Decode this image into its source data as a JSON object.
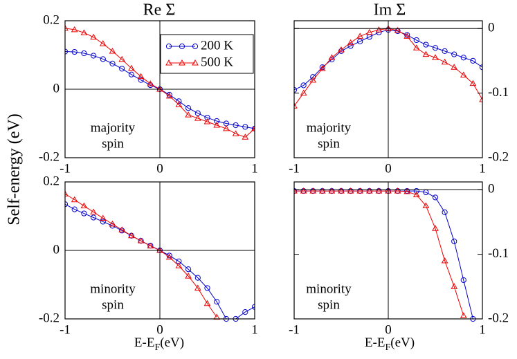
{
  "chart_data": [
    {
      "type": "line",
      "title": "Re Σ",
      "ylabel": "Self-energy (eV)",
      "xlim": [
        -1,
        1
      ],
      "ylim": [
        -0.2,
        0.2
      ],
      "xticks": [
        -1,
        0,
        1
      ],
      "yticks": [
        -0.2,
        0,
        0.2
      ],
      "yaxis_side": "left",
      "zero_lines": true,
      "legend": "upper right",
      "annotation": [
        "majority",
        "spin"
      ],
      "x": [
        -1,
        -0.9,
        -0.8,
        -0.7,
        -0.6,
        -0.5,
        -0.4,
        -0.3,
        -0.2,
        -0.1,
        0,
        0.1,
        0.2,
        0.3,
        0.4,
        0.5,
        0.6,
        0.7,
        0.8,
        0.9,
        1
      ],
      "series": [
        {
          "name": "200 K",
          "color": "#0000cc",
          "marker": "circle",
          "values": [
            0.11,
            0.109,
            0.105,
            0.098,
            0.088,
            0.075,
            0.06,
            0.043,
            0.027,
            0.012,
            0,
            -0.016,
            -0.035,
            -0.055,
            -0.07,
            -0.083,
            -0.093,
            -0.1,
            -0.105,
            -0.11,
            -0.115
          ]
        },
        {
          "name": "500 K",
          "color": "#ee0000",
          "marker": "triangle",
          "values": [
            0.178,
            0.174,
            0.165,
            0.152,
            0.133,
            0.111,
            0.087,
            0.061,
            0.037,
            0.016,
            0,
            -0.02,
            -0.045,
            -0.075,
            -0.085,
            -0.095,
            -0.105,
            -0.115,
            -0.13,
            -0.14,
            -0.115
          ]
        }
      ]
    },
    {
      "type": "line",
      "title": "Im Σ",
      "xlim": [
        -1,
        1
      ],
      "ylim": [
        -0.2,
        0.012
      ],
      "xticks": [
        -1,
        0,
        1
      ],
      "yticks": [
        -0.2,
        -0.1,
        0
      ],
      "yaxis_side": "right",
      "zero_lines": true,
      "annotation": [
        "majority",
        "spin"
      ],
      "x": [
        -1,
        -0.9,
        -0.8,
        -0.7,
        -0.6,
        -0.5,
        -0.4,
        -0.3,
        -0.2,
        -0.1,
        0,
        0.1,
        0.2,
        0.3,
        0.4,
        0.5,
        0.6,
        0.7,
        0.8,
        0.9,
        1
      ],
      "series": [
        {
          "color": "#0000cc",
          "marker": "circle",
          "values": [
            -0.095,
            -0.088,
            -0.075,
            -0.06,
            -0.048,
            -0.035,
            -0.027,
            -0.02,
            -0.013,
            -0.006,
            -0.002,
            -0.004,
            -0.01,
            -0.018,
            -0.025,
            -0.03,
            -0.035,
            -0.04,
            -0.045,
            -0.05,
            -0.06
          ]
        },
        {
          "color": "#ee0000",
          "marker": "triangle",
          "values": [
            -0.12,
            -0.1,
            -0.08,
            -0.062,
            -0.045,
            -0.033,
            -0.022,
            -0.012,
            -0.006,
            -0.002,
            0,
            -0.003,
            -0.012,
            -0.03,
            -0.04,
            -0.045,
            -0.052,
            -0.06,
            -0.072,
            -0.085,
            -0.11
          ]
        }
      ]
    },
    {
      "type": "line",
      "xlabel": "E-E",
      "xlabel_sub": "F",
      "xlabel_unit": "(eV)",
      "xlim": [
        -1,
        1
      ],
      "ylim": [
        -0.2,
        0.2
      ],
      "xticks": [
        -1,
        0,
        1
      ],
      "yticks": [
        -0.2,
        0,
        0.2
      ],
      "yaxis_side": "left",
      "zero_lines": true,
      "annotation": [
        "minority",
        "spin"
      ],
      "x": [
        -1,
        -0.9,
        -0.8,
        -0.7,
        -0.6,
        -0.5,
        -0.4,
        -0.3,
        -0.2,
        -0.1,
        0,
        0.1,
        0.2,
        0.3,
        0.4,
        0.5,
        0.6,
        0.7,
        0.8,
        0.9,
        1
      ],
      "series": [
        {
          "color": "#0000cc",
          "marker": "circle",
          "values": [
            0.135,
            0.12,
            0.108,
            0.096,
            0.084,
            0.072,
            0.058,
            0.043,
            0.028,
            0.014,
            0,
            -0.015,
            -0.032,
            -0.055,
            -0.08,
            -0.11,
            -0.15,
            -0.2,
            -0.2,
            -0.18,
            -0.165
          ]
        },
        {
          "color": "#ee0000",
          "marker": "triangle",
          "values": [
            0.165,
            0.148,
            0.13,
            0.112,
            0.094,
            0.077,
            0.06,
            0.043,
            0.028,
            0.013,
            0,
            -0.02,
            -0.045,
            -0.075,
            -0.11,
            -0.155,
            -0.195,
            null,
            null,
            null,
            null
          ]
        }
      ]
    },
    {
      "type": "line",
      "xlabel": "E-E",
      "xlabel_sub": "F",
      "xlabel_unit": "(eV)",
      "xlim": [
        -1,
        1
      ],
      "ylim": [
        -0.2,
        0.012
      ],
      "xticks": [
        -1,
        0,
        1
      ],
      "yticks": [
        -0.2,
        -0.1,
        0
      ],
      "yaxis_side": "right",
      "zero_lines": true,
      "annotation": [
        "minority",
        "spin"
      ],
      "x": [
        -1,
        -0.9,
        -0.8,
        -0.7,
        -0.6,
        -0.5,
        -0.4,
        -0.3,
        -0.2,
        -0.1,
        0,
        0.1,
        0.2,
        0.3,
        0.4,
        0.5,
        0.6,
        0.7,
        0.8,
        0.9,
        1
      ],
      "series": [
        {
          "color": "#0000cc",
          "marker": "circle",
          "values": [
            -0.002,
            -0.002,
            -0.002,
            -0.002,
            -0.002,
            -0.002,
            -0.002,
            -0.002,
            -0.002,
            -0.002,
            -0.002,
            -0.002,
            -0.002,
            -0.002,
            -0.004,
            -0.012,
            -0.035,
            -0.08,
            -0.14,
            -0.2,
            null
          ]
        },
        {
          "color": "#ee0000",
          "marker": "triangle",
          "values": [
            -0.002,
            -0.002,
            -0.002,
            -0.002,
            -0.002,
            -0.002,
            -0.002,
            -0.002,
            -0.002,
            -0.002,
            -0.002,
            -0.002,
            -0.003,
            -0.008,
            -0.025,
            -0.06,
            -0.11,
            -0.15,
            -0.195,
            null,
            null
          ]
        }
      ]
    }
  ]
}
